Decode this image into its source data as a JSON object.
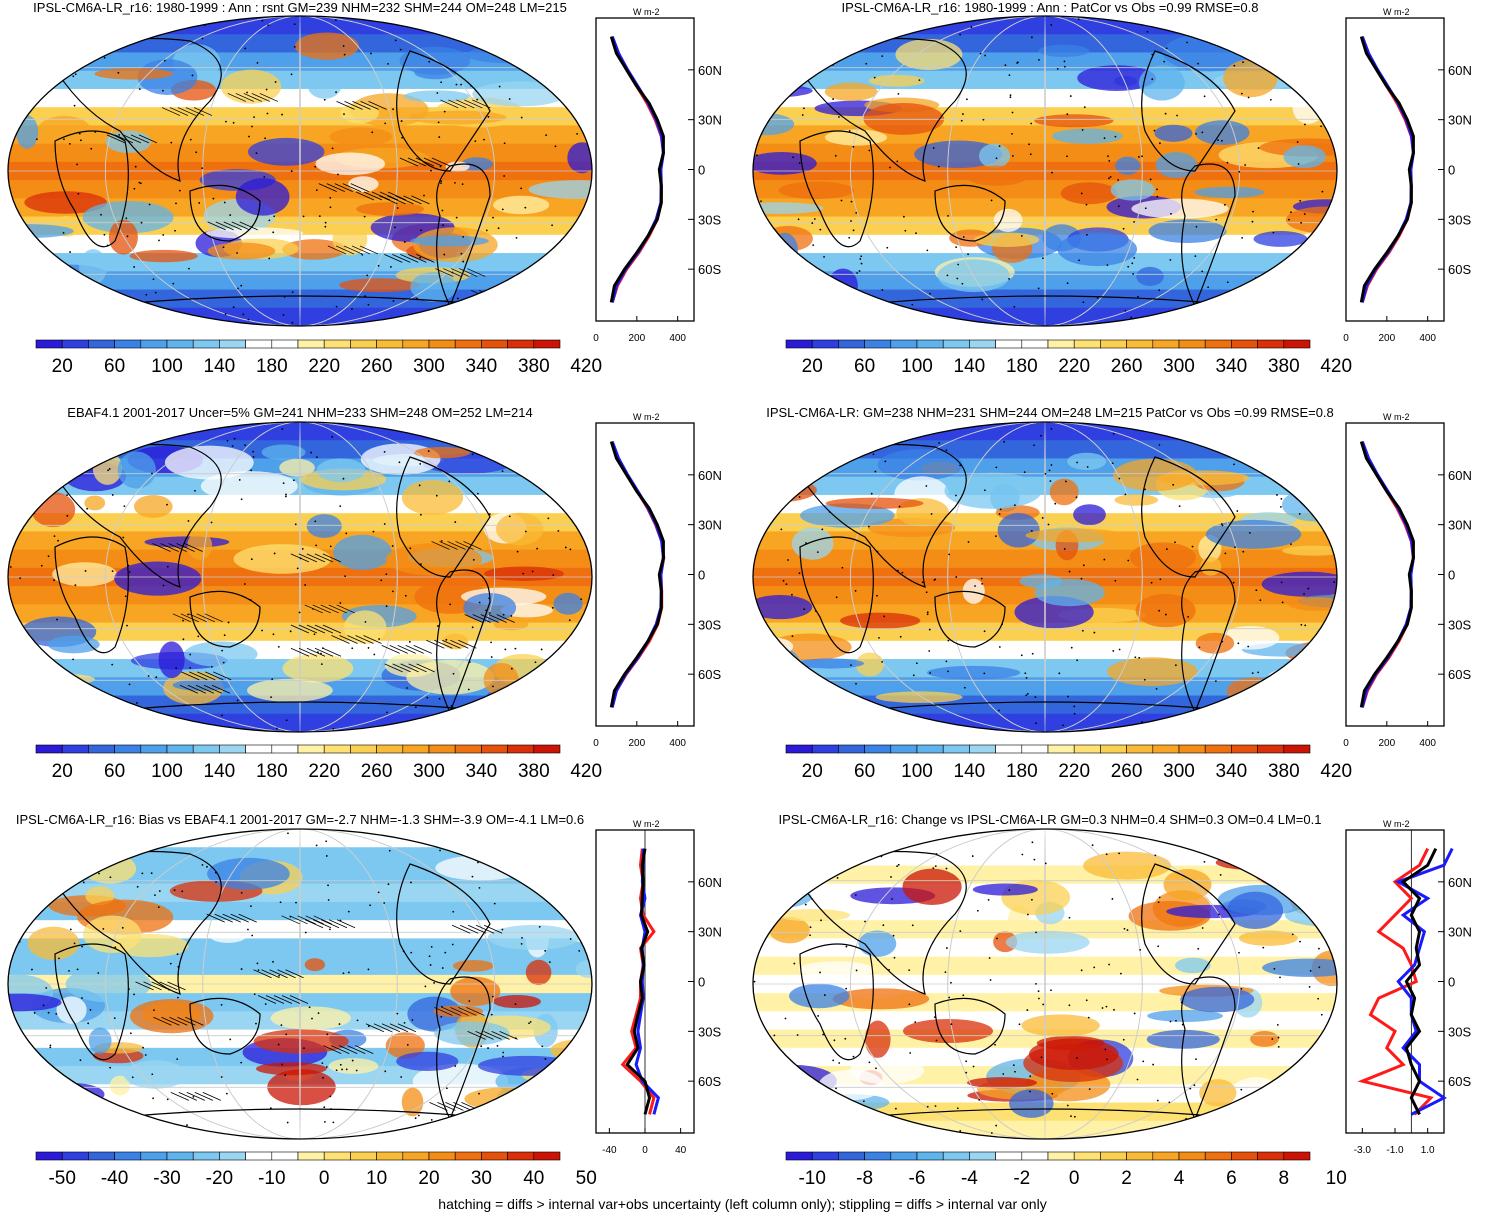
{
  "panels": [
    {
      "title": "IPSL-CM6A-LR_r16: 1980-1999 : Ann : rsnt GM=239 NHM=232 SHM=244 OM=248 LM=215",
      "palette": "abs",
      "cbar_labels": [
        "20",
        "60",
        "100",
        "140",
        "180",
        "220",
        "260",
        "300",
        "340",
        "380",
        "420"
      ],
      "zonal_unit": "W m-2",
      "zonal_ticks": [
        "0",
        "200",
        "400"
      ],
      "lat_ticks": [
        "60N",
        "30N",
        "0",
        "30S",
        "60S"
      ]
    },
    {
      "title": "IPSL-CM6A-LR_r16: 1980-1999 : Ann : PatCor vs Obs =0.99 RMSE=0.8",
      "palette": "abs",
      "cbar_labels": [
        "20",
        "60",
        "100",
        "140",
        "180",
        "220",
        "260",
        "300",
        "340",
        "380",
        "420"
      ],
      "zonal_unit": "W m-2",
      "zonal_ticks": [
        "0",
        "200",
        "400"
      ],
      "lat_ticks": [
        "60N",
        "30N",
        "0",
        "30S",
        "60S"
      ]
    },
    {
      "title": "EBAF4.1 2001-2017 Uncer=5% GM=241 NHM=233 SHM=248 OM=252 LM=214",
      "palette": "abs",
      "cbar_labels": [
        "20",
        "60",
        "100",
        "140",
        "180",
        "220",
        "260",
        "300",
        "340",
        "380",
        "420"
      ],
      "zonal_unit": "W m-2",
      "zonal_ticks": [
        "0",
        "200",
        "400"
      ],
      "lat_ticks": [
        "60N",
        "30N",
        "0",
        "30S",
        "60S"
      ]
    },
    {
      "title": "IPSL-CM6A-LR: GM=238 NHM=231 SHM=244 OM=248 LM=215 PatCor vs Obs =0.99 RMSE=0.8",
      "palette": "abs",
      "cbar_labels": [
        "20",
        "60",
        "100",
        "140",
        "180",
        "220",
        "260",
        "300",
        "340",
        "380",
        "420"
      ],
      "zonal_unit": "W m-2",
      "zonal_ticks": [
        "0",
        "200",
        "400"
      ],
      "lat_ticks": [
        "60N",
        "30N",
        "0",
        "30S",
        "60S"
      ]
    },
    {
      "title": "IPSL-CM6A-LR_r16: Bias vs EBAF4.1 2001-2017 GM=-2.7 NHM=-1.3 SHM=-3.9 OM=-4.1 LM=0.6",
      "palette": "bias",
      "cbar_labels": [
        "-50",
        "-40",
        "-30",
        "-20",
        "-10",
        "0",
        "10",
        "20",
        "30",
        "40",
        "50"
      ],
      "zonal_unit": "W m-2",
      "zonal_ticks": [
        "-40",
        "0",
        "40"
      ],
      "lat_ticks": [
        "60N",
        "30N",
        "0",
        "30S",
        "60S"
      ]
    },
    {
      "title": "IPSL-CM6A-LR_r16: Change vs IPSL-CM6A-LR GM=0.3 NHM=0.4 SHM=0.3 OM=0.4 LM=0.1",
      "palette": "change",
      "cbar_labels": [
        "-10",
        "-8",
        "-6",
        "-4",
        "-2",
        "0",
        "2",
        "4",
        "6",
        "8",
        "10"
      ],
      "zonal_unit": "W m-2",
      "zonal_ticks": [
        "-3.0",
        "-1.0",
        "1.0"
      ],
      "lat_ticks": [
        "60N",
        "30N",
        "0",
        "30S",
        "60S"
      ]
    }
  ],
  "footer": "hatching = diffs > internal var+obs uncertainty (left column only); stippling = diffs > internal var only",
  "colors": {
    "abs": [
      "#2b1ad8",
      "#2f3fe0",
      "#3366dd",
      "#3b82e6",
      "#4fa0ea",
      "#5fb4ee",
      "#7cc8f0",
      "#9ad6f2",
      "#ffffff",
      "#ffffff",
      "#fff2a6",
      "#fde273",
      "#fbd050",
      "#f9bb35",
      "#f7a523",
      "#f48d15",
      "#ef700e",
      "#e6510b",
      "#da2f08",
      "#cb1406"
    ],
    "bias": [
      "#2b1ad8",
      "#2f3fe0",
      "#3366dd",
      "#3b82e6",
      "#4fa0ea",
      "#5fb4ee",
      "#7cc8f0",
      "#9ad6f2",
      "#ffffff",
      "#ffffff",
      "#fff2a6",
      "#fde273",
      "#fbd050",
      "#f9bb35",
      "#f7a523",
      "#f48d15",
      "#ef700e",
      "#e6510b",
      "#da2f08",
      "#cb1406"
    ],
    "change": [
      "#2b1ad8",
      "#2f3fe0",
      "#3366dd",
      "#3b82e6",
      "#4fa0ea",
      "#5fb4ee",
      "#7cc8f0",
      "#9ad6f2",
      "#ffffff",
      "#ffffff",
      "#fff2a6",
      "#fde273",
      "#fbd050",
      "#f9bb35",
      "#f7a523",
      "#f48d15",
      "#ef700e",
      "#e6510b",
      "#da2f08",
      "#cb1406"
    ],
    "series_red": "#ff1a1a",
    "series_blue": "#1a1aff",
    "series_black": "#000000",
    "land": "#000000"
  },
  "chart_data": [
    {
      "type": "heatmap",
      "title": "IPSL-CM6A-LR_r16: 1980-1999 : Ann : rsnt GM=239 NHM=232 SHM=244 OM=248 LM=215",
      "colorbar_range": [
        0,
        440
      ],
      "zonal_profile": {
        "lat": [
          -80,
          -70,
          -60,
          -50,
          -40,
          -30,
          -20,
          -10,
          0,
          10,
          20,
          30,
          40,
          50,
          60,
          70,
          80
        ],
        "series": [
          {
            "values": [
              80,
              105,
              150,
              210,
              260,
              300,
              320,
              320,
              315,
              330,
              320,
              290,
              250,
              200,
              150,
              110,
              80
            ]
          },
          {
            "values": [
              80,
              100,
              145,
              205,
              255,
              295,
              318,
              320,
              318,
              330,
              322,
              295,
              255,
              205,
              155,
              110,
              80
            ]
          },
          {
            "values": [
              75,
              90,
              140,
              200,
              255,
              300,
              320,
              320,
              310,
              330,
              330,
              300,
              260,
              200,
              150,
              100,
              75
            ]
          }
        ]
      }
    },
    {
      "type": "heatmap",
      "title": "IPSL-CM6A-LR_r16: 1980-1999 : Ann : PatCor vs Obs =0.99 RMSE=0.8",
      "colorbar_range": [
        0,
        440
      ],
      "zonal_profile": {
        "lat": [
          -80,
          -70,
          -60,
          -50,
          -40,
          -30,
          -20,
          -10,
          0,
          10,
          20,
          30,
          40,
          50,
          60,
          70,
          80
        ],
        "series": [
          {
            "values": [
              80,
              105,
              150,
              210,
              260,
              300,
              320,
              320,
              315,
              330,
              320,
              290,
              250,
              200,
              150,
              110,
              80
            ]
          },
          {
            "values": [
              80,
              100,
              145,
              205,
              255,
              295,
              318,
              320,
              318,
              330,
              322,
              295,
              255,
              205,
              155,
              110,
              80
            ]
          },
          {
            "values": [
              75,
              90,
              140,
              200,
              255,
              300,
              320,
              320,
              310,
              330,
              330,
              300,
              260,
              200,
              150,
              100,
              75
            ]
          }
        ]
      }
    },
    {
      "type": "heatmap",
      "title": "EBAF4.1 2001-2017 Uncer=5% GM=241 NHM=233 SHM=248 OM=252 LM=214",
      "colorbar_range": [
        0,
        440
      ],
      "zonal_profile": {
        "lat": [
          -80,
          -70,
          -60,
          -50,
          -40,
          -30,
          -20,
          -10,
          0,
          10,
          20,
          30,
          40,
          50,
          60,
          70,
          80
        ],
        "series": [
          {
            "values": [
              78,
              100,
              148,
              208,
              262,
              302,
              322,
              322,
              318,
              332,
              322,
              292,
              252,
              202,
              152,
              108,
              78
            ]
          },
          {
            "values": [
              80,
              100,
              145,
              205,
              255,
              295,
              318,
              320,
              318,
              330,
              322,
              295,
              255,
              205,
              155,
              110,
              80
            ]
          },
          {
            "values": [
              75,
              90,
              140,
              200,
              255,
              300,
              320,
              320,
              310,
              330,
              330,
              300,
              260,
              200,
              150,
              100,
              75
            ]
          }
        ]
      }
    },
    {
      "type": "heatmap",
      "title": "IPSL-CM6A-LR: GM=238 NHM=231 SHM=244 OM=248 LM=215 PatCor vs Obs =0.99 RMSE=0.8",
      "colorbar_range": [
        0,
        440
      ],
      "zonal_profile": {
        "lat": [
          -80,
          -70,
          -60,
          -50,
          -40,
          -30,
          -20,
          -10,
          0,
          10,
          20,
          30,
          40,
          50,
          60,
          70,
          80
        ],
        "series": [
          {
            "values": [
              80,
              105,
              150,
              210,
              260,
              300,
              320,
              320,
              315,
              330,
              320,
              290,
              250,
              200,
              150,
              110,
              80
            ]
          },
          {
            "values": [
              80,
              100,
              145,
              205,
              255,
              295,
              318,
              320,
              318,
              330,
              322,
              295,
              255,
              205,
              155,
              110,
              80
            ]
          },
          {
            "values": [
              75,
              90,
              140,
              200,
              255,
              300,
              320,
              320,
              310,
              330,
              330,
              300,
              260,
              200,
              150,
              100,
              75
            ]
          }
        ]
      }
    },
    {
      "type": "heatmap",
      "title": "IPSL-CM6A-LR_r16: Bias vs EBAF4.1 2001-2017 GM=-2.7 NHM=-1.3 SHM=-3.9 OM=-4.1 LM=0.6",
      "colorbar_range": [
        -55,
        55
      ],
      "zonal_profile": {
        "lat": [
          -80,
          -70,
          -60,
          -50,
          -40,
          -30,
          -20,
          -10,
          0,
          10,
          20,
          30,
          40,
          50,
          60,
          70,
          80
        ],
        "series": [
          {
            "values": [
              5,
              10,
              -5,
              -25,
              -10,
              -15,
              -10,
              -5,
              -5,
              -2,
              -5,
              10,
              -2,
              -5,
              -2,
              -5,
              -3
            ]
          },
          {
            "values": [
              10,
              15,
              -3,
              -10,
              -5,
              -8,
              -5,
              -2,
              -3,
              -2,
              -3,
              0,
              -5,
              0,
              -3,
              -2,
              -2
            ]
          },
          {
            "values": [
              0,
              5,
              0,
              -20,
              -8,
              -12,
              -8,
              -3,
              -5,
              -1,
              -4,
              3,
              -4,
              -3,
              -2,
              -3,
              0
            ]
          }
        ]
      }
    },
    {
      "type": "heatmap",
      "title": "IPSL-CM6A-LR_r16: Change vs IPSL-CM6A-LR GM=0.3 NHM=0.4 SHM=0.3 OM=0.4 LM=0.1",
      "colorbar_range": [
        -11,
        11
      ],
      "zonal_profile": {
        "lat": [
          -80,
          -70,
          -60,
          -50,
          -40,
          -30,
          -20,
          -10,
          0,
          10,
          20,
          30,
          40,
          50,
          60,
          70,
          80
        ],
        "series": [
          {
            "values": [
              0.2,
              1.2,
              -3.0,
              -0.5,
              -1.5,
              -1.0,
              -2.5,
              -2.0,
              0.3,
              0.0,
              -0.5,
              -2.0,
              -1.0,
              0.0,
              -1.0,
              0.5,
              1.0
            ]
          },
          {
            "values": [
              0.0,
              2.0,
              0.5,
              0.5,
              -0.5,
              0.3,
              0.0,
              0.0,
              -0.8,
              0.2,
              0.5,
              0.8,
              -0.5,
              1.0,
              -0.8,
              2.0,
              2.5
            ]
          },
          {
            "values": [
              0.5,
              0.0,
              0.5,
              0.0,
              -0.3,
              0.5,
              0.0,
              0.2,
              -0.3,
              0.5,
              0.3,
              0.5,
              0.0,
              0.5,
              -0.5,
              1.0,
              1.5
            ]
          }
        ]
      }
    }
  ]
}
